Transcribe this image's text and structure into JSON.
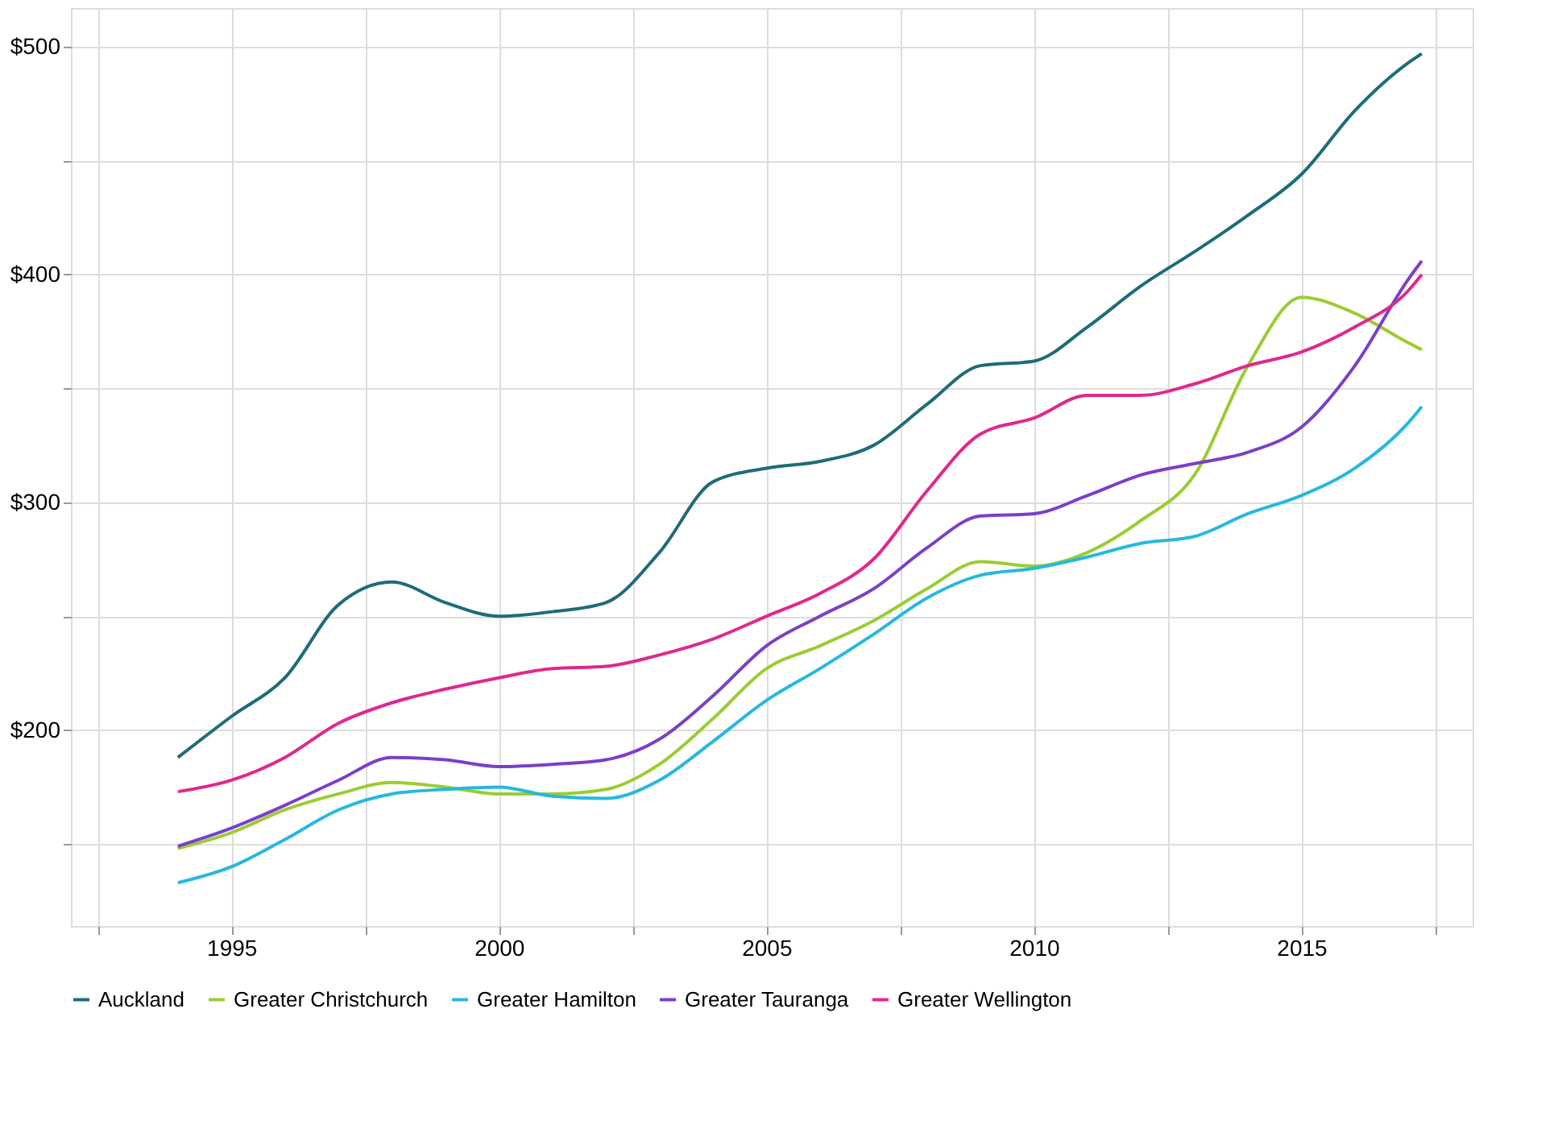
{
  "chart_data": {
    "type": "line",
    "x": [
      1994,
      1995,
      1996,
      1997,
      1998,
      1999,
      2000,
      2001,
      2002,
      2003,
      2004,
      2005,
      2006,
      2007,
      2008,
      2009,
      2010,
      2011,
      2012,
      2013,
      2014,
      2015,
      2016,
      2017,
      2017.25
    ],
    "series": [
      {
        "name": "Auckland",
        "color": "#1f6b7a",
        "values": [
          188,
          206,
          223,
          255,
          265,
          256,
          250,
          252,
          256,
          278,
          309,
          315,
          318,
          325,
          343,
          360,
          362,
          377,
          395,
          410,
          426,
          444,
          472,
          493,
          497
        ]
      },
      {
        "name": "Greater Christchurch",
        "color": "#9acd32",
        "values": [
          148,
          155,
          165,
          172,
          177,
          175,
          172,
          172,
          174,
          185,
          205,
          227,
          237,
          248,
          262,
          274,
          272,
          278,
          292,
          312,
          360,
          390,
          383,
          370,
          367
        ]
      },
      {
        "name": "Greater Hamilton",
        "color": "#26b8e0",
        "values": [
          133,
          140,
          152,
          165,
          172,
          174,
          175,
          171,
          170,
          178,
          195,
          213,
          227,
          242,
          258,
          268,
          271,
          276,
          282,
          285,
          295,
          303,
          315,
          335,
          342
        ]
      },
      {
        "name": "Greater Tauranga",
        "color": "#7b3fc8",
        "values": [
          149,
          157,
          167,
          178,
          188,
          187,
          184,
          185,
          187,
          196,
          215,
          237,
          250,
          262,
          280,
          294,
          295,
          303,
          312,
          317,
          322,
          333,
          360,
          398,
          406
        ]
      },
      {
        "name": "Greater Wellington",
        "color": "#e0288e",
        "values": [
          173,
          178,
          188,
          203,
          212,
          218,
          223,
          227,
          228,
          233,
          240,
          250,
          260,
          275,
          305,
          330,
          337,
          347,
          347,
          352,
          360,
          366,
          377,
          393,
          400
        ]
      }
    ],
    "xlim": [
      1992,
      2018.2
    ],
    "xticks": [
      {
        "value": 1992.5,
        "label": null
      },
      1995,
      {
        "value": 1997.5,
        "label": null
      },
      2000,
      {
        "value": 2002.5,
        "label": null
      },
      2005,
      {
        "value": 2007.5,
        "label": null
      },
      2010,
      {
        "value": 2012.5,
        "label": null
      },
      2015,
      {
        "value": 2017.5,
        "label": null
      }
    ],
    "ylim": [
      114,
      517
    ],
    "yticks": [
      {
        "value": 150,
        "label": null
      },
      {
        "value": 200,
        "label": "$200"
      },
      {
        "value": 250,
        "label": null
      },
      {
        "value": 300,
        "label": "$300"
      },
      {
        "value": 350,
        "label": null
      },
      {
        "value": 400,
        "label": "$400"
      },
      {
        "value": 450,
        "label": null
      },
      {
        "value": 500,
        "label": "$500"
      }
    ],
    "grid": true,
    "legend": "bottom"
  }
}
